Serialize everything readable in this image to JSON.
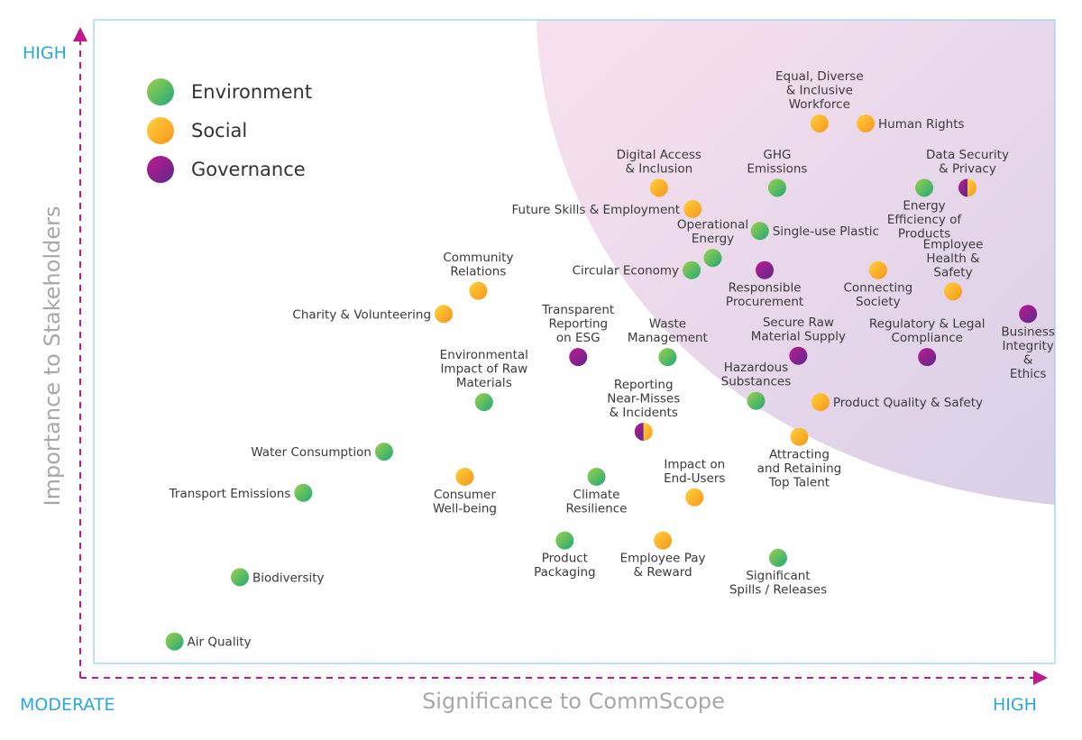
{
  "chart_data": {
    "type": "scatter",
    "xlabel": "Significance to CommScope",
    "ylabel": "Importance to Stakeholders",
    "x_axis_low": "MODERATE",
    "x_axis_high": "HIGH",
    "y_axis_high": "HIGH",
    "xlim": [
      0,
      100
    ],
    "ylim": [
      0,
      100
    ],
    "grid": false,
    "legend_position": "top-left",
    "legend": [
      {
        "key": "env",
        "label": "Environment"
      },
      {
        "key": "soc",
        "label": "Social"
      },
      {
        "key": "gov",
        "label": "Governance"
      }
    ],
    "colors": {
      "env_a": "#9bd14a",
      "env_b": "#22a879",
      "soc_a": "#ffd23a",
      "soc_b": "#f7941d",
      "gov_a": "#c1188d",
      "gov_b": "#5b2a8f",
      "axis": "#29a8e0",
      "arrow": "#c1188d",
      "frame": "#8fd3ee",
      "highlight": "#d9cfe7"
    },
    "points": [
      {
        "label": "Equal, Diverse\n& Inclusive\nWorkforce",
        "x": 75.5,
        "y": 83.9,
        "cat": "soc",
        "pos": "above"
      },
      {
        "label": "Human Rights",
        "x": 80.3,
        "y": 83.9,
        "cat": "soc",
        "pos": "right"
      },
      {
        "label": "Digital Access\n& Inclusion",
        "x": 58.8,
        "y": 73.9,
        "cat": "soc",
        "pos": "above"
      },
      {
        "label": "GHG\nEmissions",
        "x": 71.1,
        "y": 73.9,
        "cat": "env",
        "pos": "above"
      },
      {
        "label": "Energy\nEfficiency of\nProducts",
        "x": 86.4,
        "y": 73.9,
        "cat": "env",
        "pos": "below"
      },
      {
        "label": "Data Security\n& Privacy",
        "x": 90.9,
        "y": 73.9,
        "cat": "mix",
        "pos": "above"
      },
      {
        "label": "Future Skills & Employment",
        "x": 62.3,
        "y": 70.6,
        "cat": "soc",
        "pos": "left"
      },
      {
        "label": "Single-use Plastic",
        "x": 69.3,
        "y": 67.2,
        "cat": "env",
        "pos": "right"
      },
      {
        "label": "Operational\nEnergy",
        "x": 64.4,
        "y": 63.0,
        "cat": "env",
        "pos": "above"
      },
      {
        "label": "Circular Economy",
        "x": 62.2,
        "y": 61.1,
        "cat": "env",
        "pos": "left"
      },
      {
        "label": "Responsible\nProcurement",
        "x": 69.8,
        "y": 61.1,
        "cat": "gov",
        "pos": "below"
      },
      {
        "label": "Connecting\nSociety",
        "x": 81.6,
        "y": 61.1,
        "cat": "soc",
        "pos": "below"
      },
      {
        "label": "Employee\nHealth &\nSafety",
        "x": 89.4,
        "y": 57.8,
        "cat": "soc",
        "pos": "above"
      },
      {
        "label": "Community\nRelations",
        "x": 40.0,
        "y": 57.9,
        "cat": "soc",
        "pos": "above"
      },
      {
        "label": "Charity & Volunteering",
        "x": 36.4,
        "y": 54.3,
        "cat": "soc",
        "pos": "left"
      },
      {
        "label": "Business\nIntegrity\n&\nEthics",
        "x": 97.2,
        "y": 54.3,
        "cat": "gov",
        "pos": "below"
      },
      {
        "label": "Transparent\nReporting\non ESG",
        "x": 50.4,
        "y": 47.6,
        "cat": "gov",
        "pos": "above"
      },
      {
        "label": "Waste\nManagement",
        "x": 59.7,
        "y": 47.6,
        "cat": "env",
        "pos": "above"
      },
      {
        "label": "Secure Raw\nMaterial Supply",
        "x": 73.3,
        "y": 47.8,
        "cat": "gov",
        "pos": "above"
      },
      {
        "label": "Regulatory & Legal\nCompliance",
        "x": 86.7,
        "y": 47.6,
        "cat": "gov",
        "pos": "above"
      },
      {
        "label": "Environmental\nImpact of Raw\nMaterials",
        "x": 40.6,
        "y": 40.6,
        "cat": "env",
        "pos": "above"
      },
      {
        "label": "Hazardous\nSubstances",
        "x": 68.9,
        "y": 40.8,
        "cat": "env",
        "pos": "above"
      },
      {
        "label": "Product Quality & Safety",
        "x": 75.6,
        "y": 40.6,
        "cat": "soc",
        "pos": "right"
      },
      {
        "label": "Reporting\nNear-Misses\n& Incidents",
        "x": 57.2,
        "y": 36.0,
        "cat": "mix",
        "pos": "above"
      },
      {
        "label": "Attracting\nand Retaining\nTop Talent",
        "x": 73.4,
        "y": 35.2,
        "cat": "soc",
        "pos": "below"
      },
      {
        "label": "Water Consumption",
        "x": 30.2,
        "y": 32.9,
        "cat": "env",
        "pos": "left"
      },
      {
        "label": "Consumer\nWell-being",
        "x": 38.6,
        "y": 29.0,
        "cat": "soc",
        "pos": "below"
      },
      {
        "label": "Climate\nResilience",
        "x": 52.3,
        "y": 29.0,
        "cat": "env",
        "pos": "below"
      },
      {
        "label": "Impact on\nEnd-Users",
        "x": 62.5,
        "y": 25.8,
        "cat": "soc",
        "pos": "above"
      },
      {
        "label": "Transport Emissions",
        "x": 21.8,
        "y": 26.5,
        "cat": "env",
        "pos": "left"
      },
      {
        "label": "Product\nPackaging",
        "x": 49.0,
        "y": 19.1,
        "cat": "env",
        "pos": "below"
      },
      {
        "label": "Employee Pay\n& Reward",
        "x": 59.2,
        "y": 19.1,
        "cat": "soc",
        "pos": "below"
      },
      {
        "label": "Significant\nSpills / Releases",
        "x": 71.2,
        "y": 16.4,
        "cat": "env",
        "pos": "below"
      },
      {
        "label": "Biodiversity",
        "x": 15.2,
        "y": 13.4,
        "cat": "env",
        "pos": "right"
      },
      {
        "label": "Air Quality",
        "x": 8.4,
        "y": 3.4,
        "cat": "env",
        "pos": "right"
      }
    ]
  }
}
